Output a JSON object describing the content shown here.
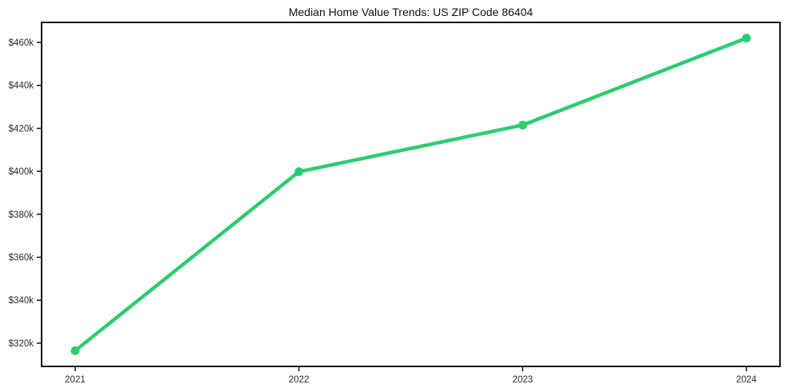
{
  "chart_data": {
    "type": "line",
    "title": "Median Home Value Trends: US ZIP Code 86404",
    "xlabel": "",
    "ylabel": "",
    "x": [
      2021,
      2022,
      2023,
      2024
    ],
    "series": [
      {
        "color": "#2ecc71",
        "values": [
          316500,
          399800,
          421500,
          462000
        ]
      }
    ],
    "xlim": [
      2020.85,
      2024.15
    ],
    "ylim": [
      309200,
      469300
    ],
    "xticks": {
      "values": [
        2021,
        2022,
        2023,
        2024
      ],
      "labels": [
        "2021",
        "2022",
        "2023",
        "2024"
      ]
    },
    "yticks": {
      "values": [
        320000,
        340000,
        360000,
        380000,
        400000,
        420000,
        440000,
        460000
      ],
      "labels": [
        "$320k",
        "$340k",
        "$360k",
        "$380k",
        "$400k",
        "$420k",
        "$440k",
        "$460k"
      ]
    },
    "grid": false,
    "legend": "none",
    "marker": "circle",
    "colors": {
      "background": "#ffffff",
      "axis": "#000000",
      "tick_label": "#2b2b2b",
      "title": "#111111"
    }
  }
}
